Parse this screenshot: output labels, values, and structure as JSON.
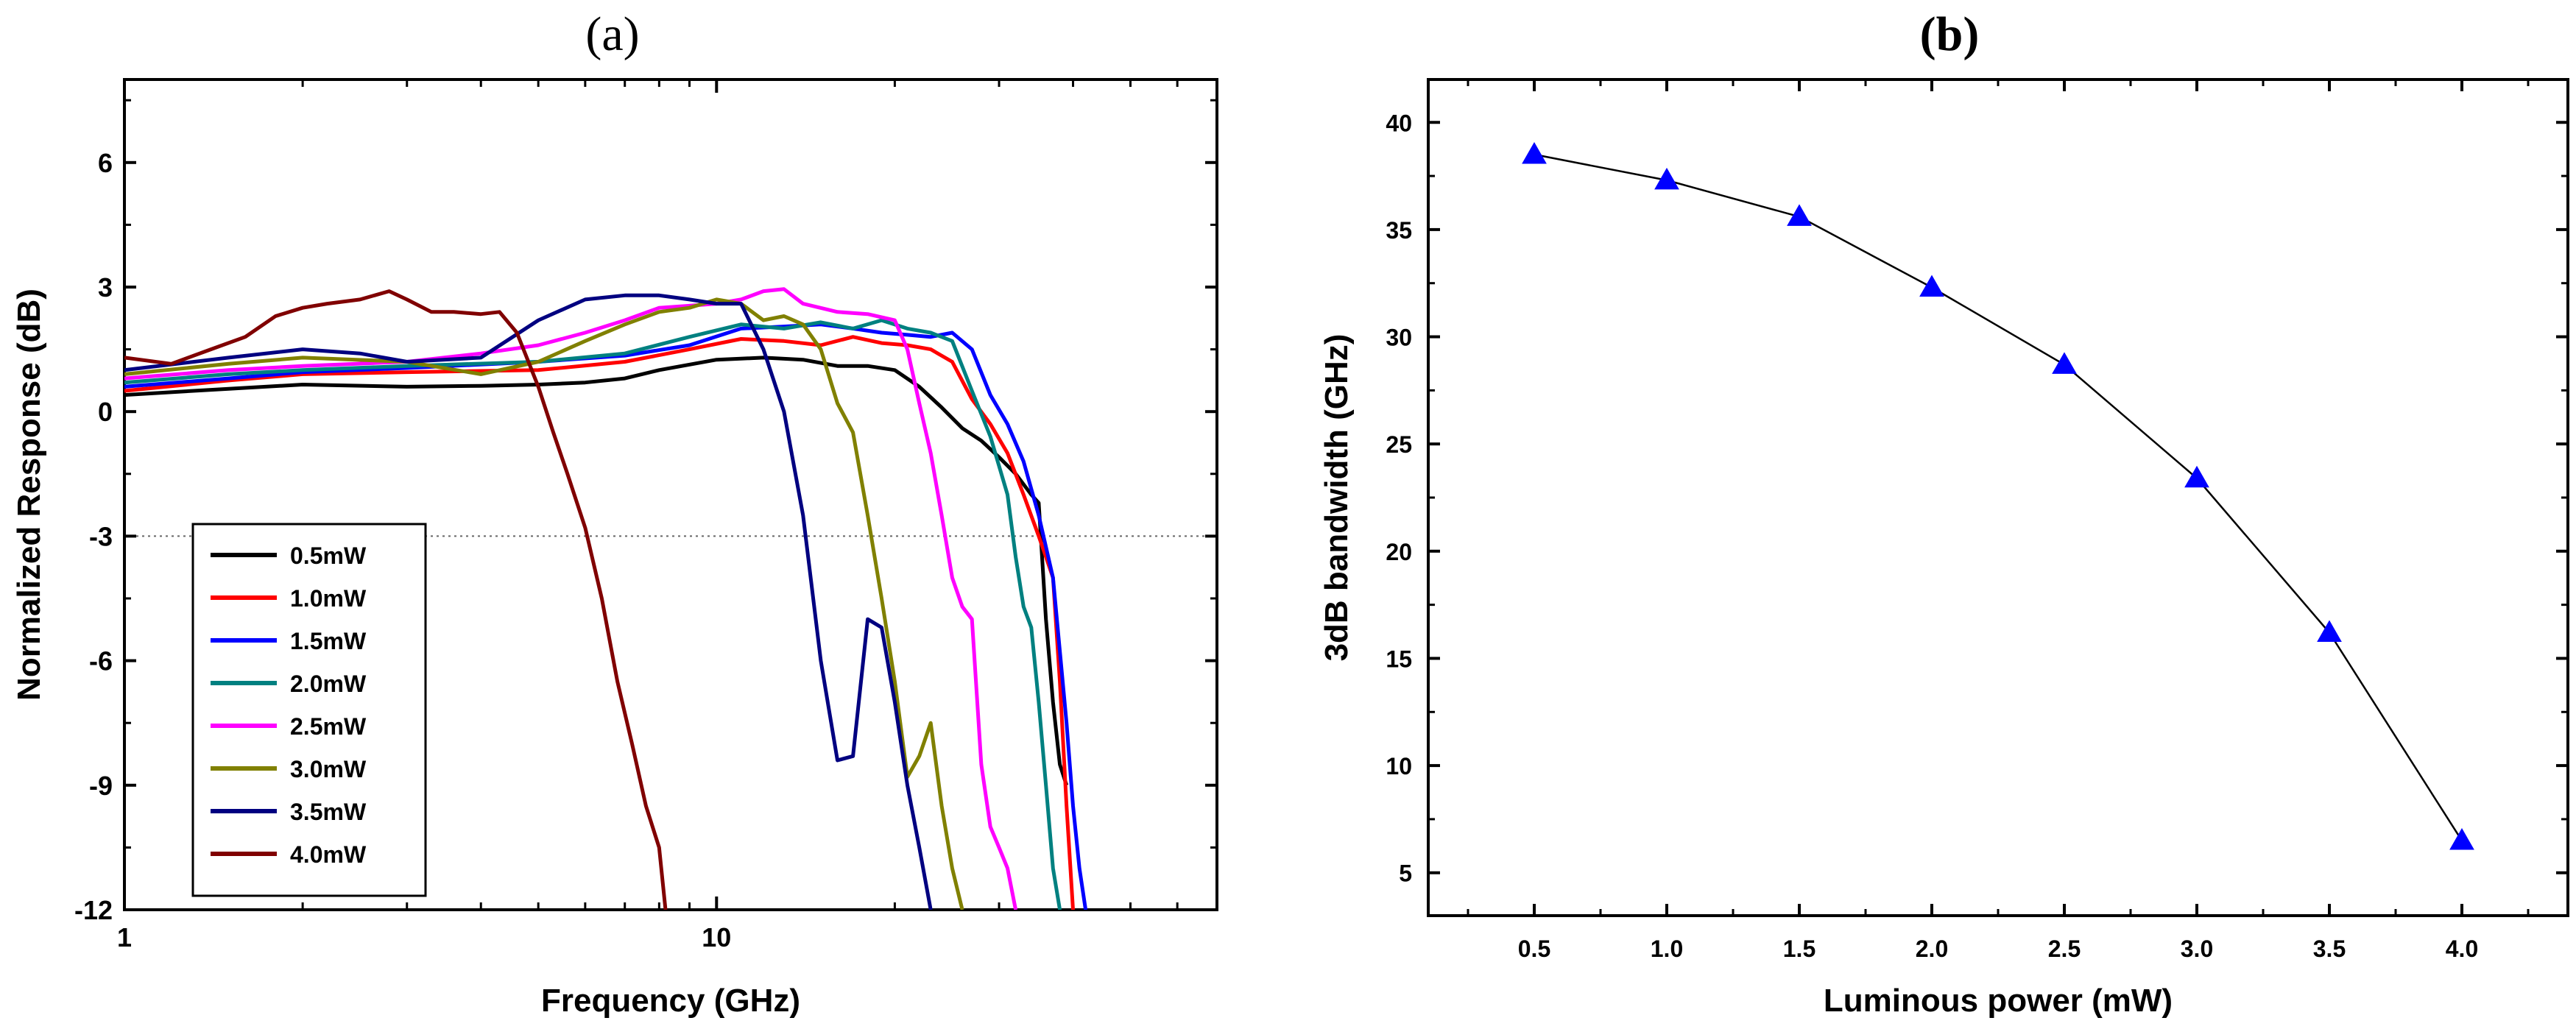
{
  "chart_data": [
    {
      "panel_label": "(a)",
      "type": "line",
      "xlabel": "Frequency (GHz)",
      "ylabel": "Normalized Response (dB)",
      "xscale": "log",
      "xlim": [
        1,
        70
      ],
      "ylim": [
        -12,
        8
      ],
      "xticks": [
        1,
        10
      ],
      "xtick_labels": [
        "1",
        "10"
      ],
      "yticks": [
        -12,
        -9,
        -6,
        -3,
        0,
        3,
        6
      ],
      "ytick_labels": [
        "-12",
        "-9",
        "-6",
        "-3",
        "0",
        "3",
        "6"
      ],
      "reference_line": {
        "y": -3,
        "style": "dotted"
      },
      "legend_position": "bottom-left",
      "series": [
        {
          "name": "0.5mW",
          "color": "#000000",
          "x": [
            1,
            1.5,
            2,
            3,
            4,
            5,
            6,
            7,
            8,
            10,
            12,
            14,
            16,
            18,
            20,
            22,
            24,
            26,
            28,
            30,
            32,
            34,
            35,
            36,
            37,
            38,
            39
          ],
          "y": [
            0.4,
            0.55,
            0.65,
            0.6,
            0.62,
            0.65,
            0.7,
            0.8,
            1.0,
            1.25,
            1.3,
            1.25,
            1.1,
            1.1,
            1.0,
            0.6,
            0.1,
            -0.4,
            -0.7,
            -1.1,
            -1.5,
            -2.0,
            -2.2,
            -5.0,
            -7.0,
            -8.5,
            -9.0
          ]
        },
        {
          "name": "1.0mW",
          "color": "#ff0000",
          "x": [
            1,
            1.5,
            2,
            3,
            5,
            7,
            9,
            11,
            13,
            15,
            17,
            19,
            21,
            23,
            25,
            27,
            29,
            31,
            33,
            35,
            36,
            37,
            38,
            39,
            40
          ],
          "y": [
            0.5,
            0.75,
            0.9,
            0.95,
            1.0,
            1.2,
            1.5,
            1.75,
            1.7,
            1.6,
            1.8,
            1.65,
            1.6,
            1.5,
            1.2,
            0.3,
            -0.3,
            -1.0,
            -2.0,
            -3.0,
            -3.5,
            -4.0,
            -6.5,
            -9.5,
            -12.0
          ]
        },
        {
          "name": "1.5mW",
          "color": "#0000ff",
          "x": [
            1,
            1.5,
            2,
            3,
            5,
            7,
            9,
            11,
            13,
            15,
            17,
            19,
            21,
            23,
            25,
            27,
            29,
            31,
            33,
            35,
            37,
            39,
            40,
            41,
            42
          ],
          "y": [
            0.6,
            0.8,
            0.95,
            1.05,
            1.2,
            1.35,
            1.6,
            2.0,
            2.05,
            2.1,
            2.0,
            1.9,
            1.85,
            1.8,
            1.9,
            1.5,
            0.4,
            -0.3,
            -1.2,
            -2.5,
            -4.0,
            -7.5,
            -9.5,
            -11.0,
            -12.0
          ]
        },
        {
          "name": "2.0mW",
          "color": "#008080",
          "x": [
            1,
            1.5,
            2,
            3,
            5,
            7,
            9,
            11,
            13,
            15,
            17,
            19,
            21,
            23,
            25,
            27,
            29,
            31,
            32,
            33,
            34,
            35,
            36,
            37,
            38
          ],
          "y": [
            0.7,
            0.9,
            1.0,
            1.1,
            1.2,
            1.4,
            1.8,
            2.1,
            2.0,
            2.15,
            2.0,
            2.2,
            2.0,
            1.9,
            1.7,
            0.5,
            -0.6,
            -2.0,
            -3.5,
            -4.7,
            -5.2,
            -7.0,
            -9.0,
            -11.0,
            -12.0
          ]
        },
        {
          "name": "2.5mW",
          "color": "#ff00ff",
          "x": [
            1,
            1.5,
            2,
            3,
            4,
            5,
            6,
            7,
            8,
            9,
            10,
            11,
            12,
            13,
            14,
            16,
            18,
            20,
            21,
            22,
            23,
            24,
            25,
            26,
            27,
            28,
            29,
            30,
            31,
            32
          ],
          "y": [
            0.8,
            1.0,
            1.1,
            1.2,
            1.4,
            1.6,
            1.9,
            2.2,
            2.5,
            2.55,
            2.6,
            2.7,
            2.9,
            2.95,
            2.6,
            2.4,
            2.35,
            2.2,
            1.5,
            0.2,
            -1.0,
            -2.5,
            -4.0,
            -4.7,
            -5.0,
            -8.5,
            -10.0,
            -10.5,
            -11.0,
            -12.0
          ]
        },
        {
          "name": "3.0mW",
          "color": "#808000",
          "x": [
            1,
            1.5,
            2,
            3,
            4,
            5,
            6,
            7,
            8,
            9,
            10,
            11,
            12,
            13,
            14,
            15,
            16,
            17,
            18,
            19,
            20,
            21,
            22,
            23,
            24,
            25,
            26
          ],
          "y": [
            0.9,
            1.15,
            1.3,
            1.2,
            0.9,
            1.2,
            1.7,
            2.1,
            2.4,
            2.5,
            2.7,
            2.6,
            2.2,
            2.3,
            2.1,
            1.5,
            0.2,
            -0.5,
            -2.5,
            -4.5,
            -6.5,
            -8.8,
            -8.3,
            -7.5,
            -9.5,
            -11.0,
            -12.0
          ]
        },
        {
          "name": "3.5mW",
          "color": "#000080",
          "x": [
            1,
            1.5,
            2,
            2.5,
            3,
            4,
            5,
            6,
            7,
            8,
            9,
            10,
            11,
            12,
            13,
            14,
            15,
            16,
            17,
            18,
            19,
            20,
            21,
            22,
            23
          ],
          "y": [
            1.0,
            1.3,
            1.5,
            1.4,
            1.2,
            1.3,
            2.2,
            2.7,
            2.8,
            2.8,
            2.7,
            2.6,
            2.6,
            1.5,
            0.0,
            -2.5,
            -6.0,
            -8.4,
            -8.3,
            -5.0,
            -5.2,
            -7.0,
            -9.0,
            -10.5,
            -12.0
          ]
        },
        {
          "name": "4.0mW",
          "color": "#800000",
          "x": [
            1,
            1.2,
            1.4,
            1.6,
            1.8,
            2.0,
            2.2,
            2.5,
            2.8,
            3.0,
            3.3,
            3.6,
            4.0,
            4.3,
            4.6,
            5.0,
            5.3,
            5.6,
            6.0,
            6.4,
            6.8,
            7.2,
            7.6,
            8.0,
            8.2
          ],
          "y": [
            1.3,
            1.15,
            1.5,
            1.8,
            2.3,
            2.5,
            2.6,
            2.7,
            2.9,
            2.7,
            2.4,
            2.4,
            2.35,
            2.4,
            1.9,
            0.6,
            -0.5,
            -1.5,
            -2.8,
            -4.5,
            -6.5,
            -8.0,
            -9.5,
            -10.5,
            -12.0
          ]
        }
      ]
    },
    {
      "panel_label": "(b)",
      "type": "line",
      "xlabel": "Luminous power (mW)",
      "ylabel": "3dB bandwidth (GHz)",
      "xlim": [
        0.1,
        4.4
      ],
      "ylim": [
        3,
        42
      ],
      "xticks": [
        0.5,
        1.0,
        1.5,
        2.0,
        2.5,
        3.0,
        3.5,
        4.0
      ],
      "xtick_labels": [
        "0.5",
        "1.0",
        "1.5",
        "2.0",
        "2.5",
        "3.0",
        "3.5",
        "4.0"
      ],
      "yticks": [
        5,
        10,
        15,
        20,
        25,
        30,
        35,
        40
      ],
      "ytick_labels": [
        "5",
        "10",
        "15",
        "20",
        "25",
        "30",
        "35",
        "40"
      ],
      "marker": "triangle",
      "marker_color": "#0000ff",
      "line_color": "#000000",
      "x": [
        0.5,
        1.0,
        1.5,
        2.0,
        2.5,
        3.0,
        3.5,
        4.0
      ],
      "y": [
        38.5,
        37.3,
        35.6,
        32.3,
        28.7,
        23.4,
        16.2,
        6.5
      ]
    }
  ]
}
